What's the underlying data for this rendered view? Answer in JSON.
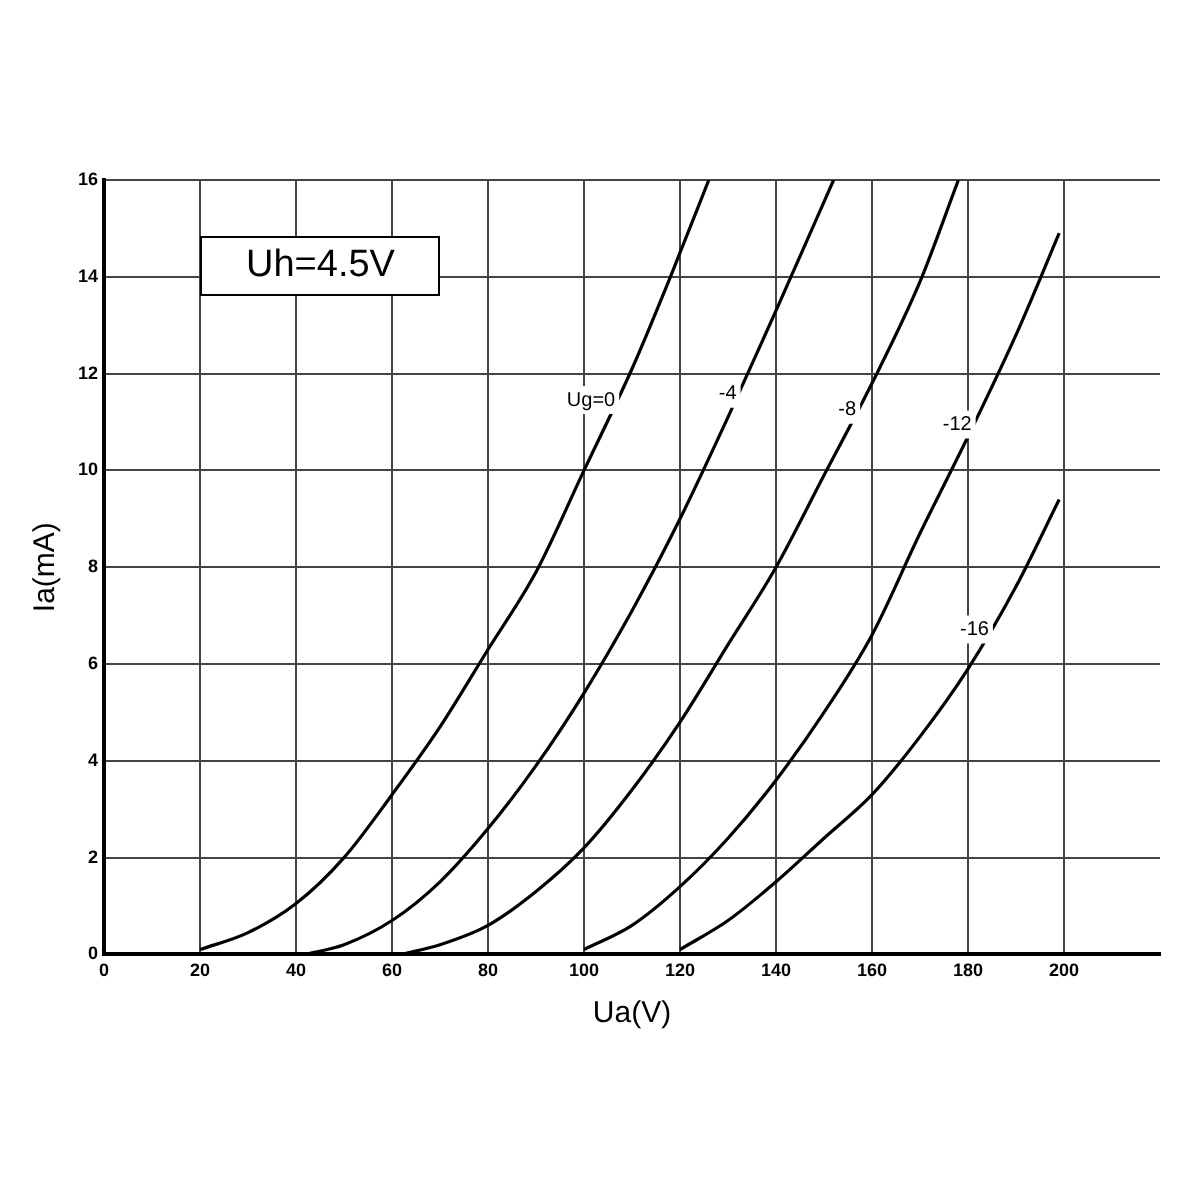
{
  "chart_data": {
    "type": "line",
    "title": "Uh=4.5V",
    "xlabel": "Ua(V)",
    "ylabel": "Ia(mA)",
    "xlim": [
      0,
      220
    ],
    "xticks": [
      0,
      20,
      40,
      60,
      80,
      100,
      120,
      140,
      160,
      180,
      200
    ],
    "ylim": [
      0,
      16
    ],
    "yticks": [
      0,
      2,
      4,
      6,
      8,
      10,
      12,
      14,
      16
    ],
    "grid": true,
    "legend": false,
    "marker": "none",
    "line_style": "solid",
    "series": [
      {
        "name": "Ug=0",
        "color": "#000000",
        "x": [
          20,
          30,
          40,
          50,
          60,
          70,
          80,
          90,
          100,
          110,
          118,
          126
        ],
        "values": [
          0.1,
          0.45,
          1.05,
          2.0,
          3.3,
          4.7,
          6.3,
          7.9,
          10.0,
          12.1,
          14,
          16
        ]
      },
      {
        "name": "-4",
        "color": "#000000",
        "x": [
          42,
          50,
          60,
          70,
          80,
          90,
          100,
          110,
          120,
          130,
          140,
          152
        ],
        "values": [
          0,
          0.2,
          0.7,
          1.5,
          2.6,
          3.9,
          5.4,
          7.1,
          9.0,
          11.1,
          13.3,
          16
        ]
      },
      {
        "name": "-8",
        "color": "#000000",
        "x": [
          62,
          70,
          80,
          90,
          100,
          110,
          120,
          130,
          140,
          150,
          160,
          170,
          178
        ],
        "values": [
          0,
          0.2,
          0.6,
          1.3,
          2.2,
          3.4,
          4.8,
          6.4,
          8.0,
          9.9,
          11.8,
          13.9,
          16
        ]
      },
      {
        "name": "-12",
        "color": "#000000",
        "x": [
          100,
          110,
          120,
          130,
          140,
          150,
          160,
          170,
          180,
          190,
          199
        ],
        "values": [
          0.1,
          0.6,
          1.4,
          2.4,
          3.6,
          5.0,
          6.6,
          8.7,
          10.7,
          12.8,
          14.9
        ]
      },
      {
        "name": "-16",
        "color": "#000000",
        "x": [
          120,
          130,
          140,
          150,
          160,
          170,
          180,
          190,
          199
        ],
        "values": [
          0.1,
          0.7,
          1.5,
          2.4,
          3.3,
          4.5,
          5.9,
          7.6,
          9.4
        ]
      }
    ]
  }
}
